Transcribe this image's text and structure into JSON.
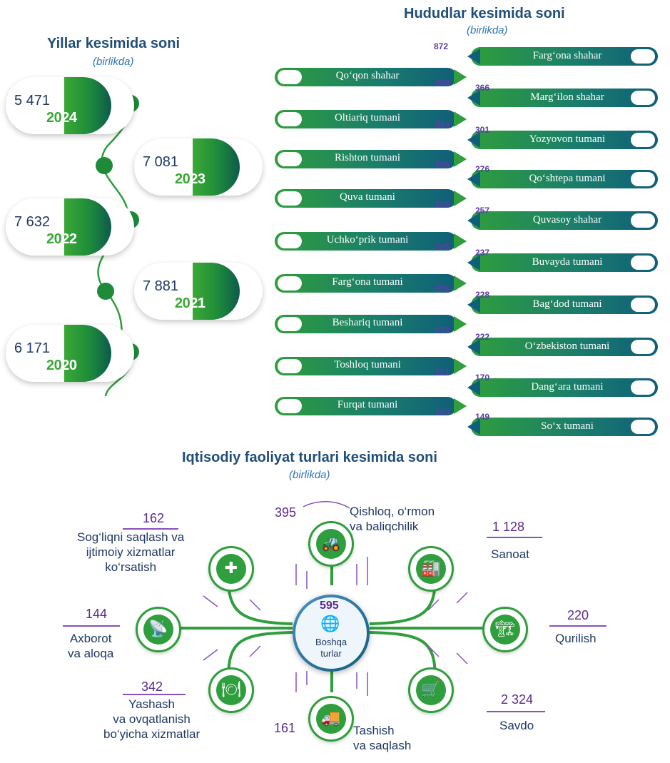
{
  "years_section": {
    "title": "Yillar kesimida soni",
    "subtitle": "(birlikda)"
  },
  "regions_section": {
    "title": "Hududlar kesimida soni",
    "subtitle": "(birlikda)"
  },
  "econ_section": {
    "title": "Iqtisodiy faoliyat turlari kesimida soni",
    "subtitle": "(birlikda)",
    "center_value": "595",
    "center_label_1": "Boshqa",
    "center_label_2": "turlar"
  },
  "colors": {
    "green": "#2f9e3c",
    "teal": "#0f5e7a",
    "navy": "#1f3864",
    "purple": "#5b2a8f"
  },
  "chart_data": [
    {
      "type": "bar",
      "title": "Yillar kesimida soni",
      "subtitle": "(birlikda)",
      "categories": [
        "2024",
        "2023",
        "2022",
        "2021",
        "2020"
      ],
      "values": [
        5471,
        7081,
        7632,
        7881,
        6171
      ],
      "value_labels": [
        "5 471",
        "7 081",
        "7 632",
        "7 881",
        "6 171"
      ]
    },
    {
      "type": "bar",
      "title": "Hududlar kesimida soni",
      "subtitle": "(birlikda)",
      "categories": [
        "Farg‘ona shahar",
        "Qo‘qon shahar",
        "Marg‘ilon shahar",
        "Oltiariq tumani",
        "Yozyovon tumani",
        "Rishton tumani",
        "Qo‘shtepa tumani",
        "Quva tumani",
        "Quvasoy shahar",
        "Uchko‘prik tumani",
        "Buvayda tumani",
        "Farg‘ona tumani",
        "Bag‘dod tumani",
        "Beshariq tumani",
        "O‘zbekiston tumani",
        "Toshloq tumani",
        "Dang‘ara tumani",
        "Furqat tumani",
        "So‘x tumani"
      ],
      "values": [
        872,
        459,
        366,
        304,
        301,
        295,
        276,
        269,
        257,
        245,
        237,
        236,
        228,
        224,
        222,
        221,
        170,
        160,
        149
      ]
    },
    {
      "type": "bar",
      "title": "Iqtisodiy faoliyat turlari kesimida soni",
      "subtitle": "(birlikda)",
      "categories": [
        "Qishloq, o‘rmon va baliqchilik",
        "Sanoat",
        "Qurilish",
        "Savdo",
        "Tashish va saqlash",
        "Yashash va ovqatlanish bo‘yicha xizmatlar",
        "Axborot va aloqa",
        "Sog‘liqni saqlash va ijtimoiy xizmatlar ko‘rsatish",
        "Boshqa turlar"
      ],
      "values": [
        395,
        1128,
        220,
        2324,
        161,
        342,
        144,
        162,
        595
      ],
      "value_labels": [
        "395",
        "1 128",
        "220",
        "2 324",
        "161",
        "342",
        "144",
        "162",
        "595"
      ]
    }
  ]
}
